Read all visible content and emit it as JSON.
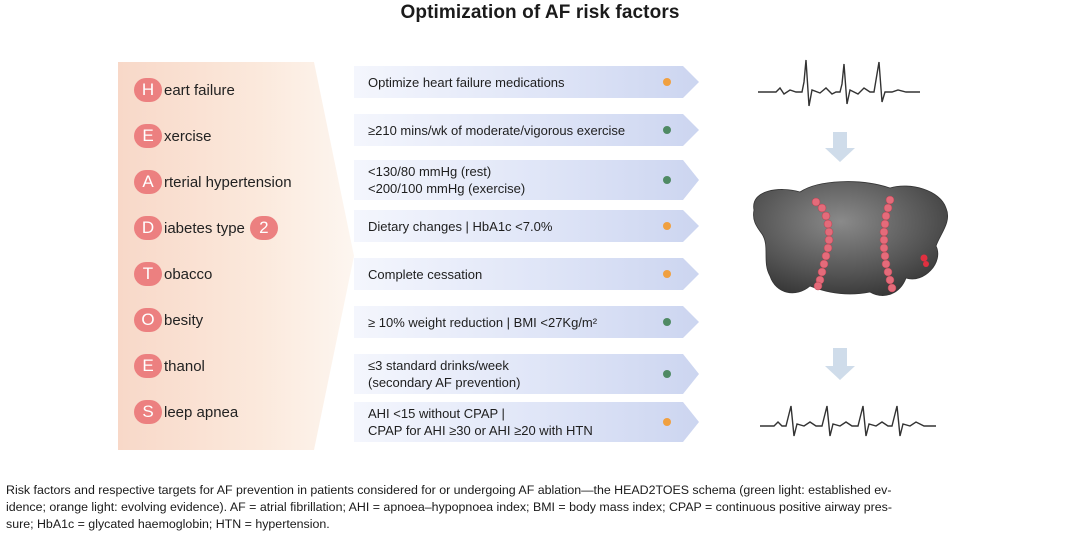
{
  "title": "Optimization of AF risk factors",
  "risk_factors": [
    {
      "letter": "H",
      "rest": "eart failure"
    },
    {
      "letter": "E",
      "rest": "xercise"
    },
    {
      "letter": "A",
      "rest": "rterial hypertension"
    },
    {
      "letter": "D",
      "rest": "iabetes type",
      "suffix": "2"
    },
    {
      "letter": "T",
      "rest": "obacco"
    },
    {
      "letter": "O",
      "rest": "besity"
    },
    {
      "letter": "E",
      "rest": "thanol"
    },
    {
      "letter": "S",
      "rest": "leep apnea"
    }
  ],
  "targets": [
    {
      "lines": [
        "Optimize heart failure medications"
      ],
      "evidence": "evolving"
    },
    {
      "lines": [
        "≥210 mins/wk of moderate/vigorous exercise"
      ],
      "evidence": "established"
    },
    {
      "lines": [
        "<130/80 mmHg (rest)",
        "<200/100 mmHg (exercise)"
      ],
      "evidence": "established"
    },
    {
      "lines": [
        "Dietary changes  |  HbA1c <7.0%"
      ],
      "evidence": "evolving"
    },
    {
      "lines": [
        "Complete cessation"
      ],
      "evidence": "evolving"
    },
    {
      "lines": [
        "≥ 10% weight reduction  |  BMI <27Kg/m²"
      ],
      "evidence": "established"
    },
    {
      "lines": [
        "≤3 standard drinks/week",
        "(secondary AF prevention)"
      ],
      "evidence": "established"
    },
    {
      "lines": [
        "AHI <15 without CPAP |",
        "CPAP for AHI ≥30 or AHI ≥20 with HTN"
      ],
      "evidence": "evolving"
    }
  ],
  "colors": {
    "established": "#4f8a64",
    "evolving": "#f0a040",
    "badge": "#ec8080",
    "arrow": "#cfdcea"
  },
  "caption": [
    "Risk factors and respective targets for AF prevention in patients considered for or undergoing AF ablation—the HEAD2TOES schema (green light: established ev-",
    "idence; orange light: evolving evidence). AF = atrial fibrillation; AHI = apnoea–hypopnoea index; BMI = body mass index; CPAP = continuous positive airway pres-",
    "sure; HbA1c = glycated haemoglobin; HTN = hypertension."
  ]
}
